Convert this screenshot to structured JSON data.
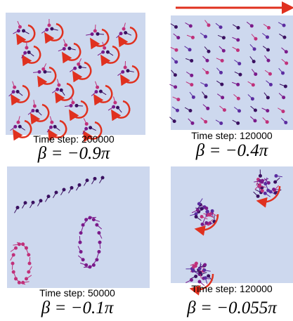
{
  "panels": [
    {
      "caption": "Time step: 200000",
      "beta": "β = −0.9π"
    },
    {
      "caption": "Time step: 120000",
      "beta": "β = −0.4π"
    },
    {
      "caption": "Time step: 50000",
      "beta": "β = −0.1π"
    },
    {
      "caption": "Time step: 120000",
      "beta": "β = −0.055π"
    }
  ]
}
